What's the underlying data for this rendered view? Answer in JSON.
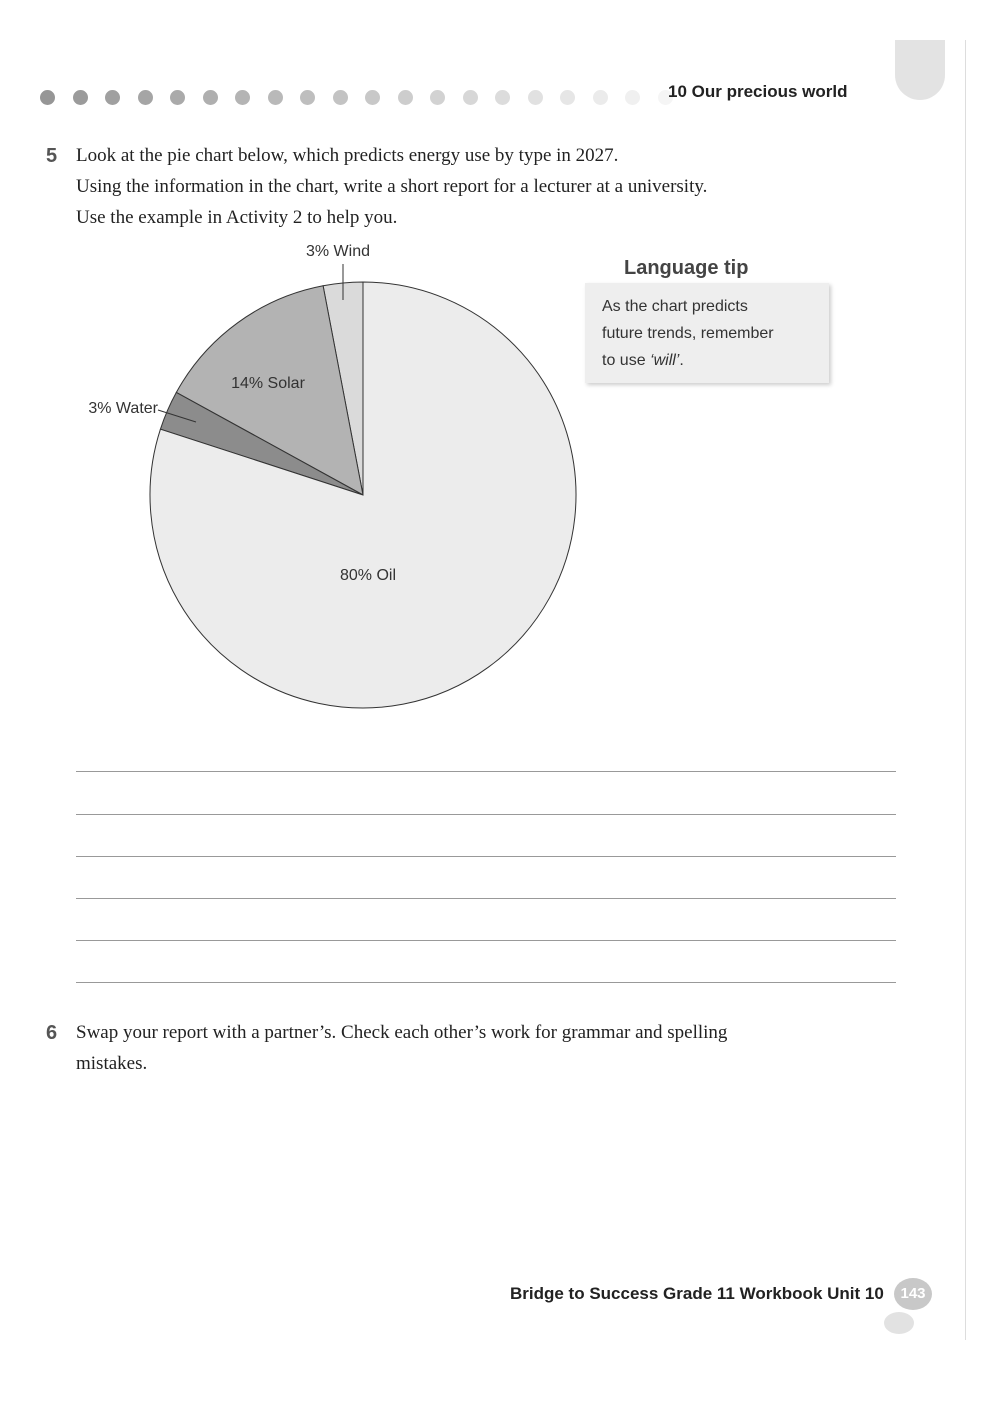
{
  "header": {
    "unit": "10 Our precious world"
  },
  "activity5": {
    "number": "5",
    "lines": [
      "Look at the pie chart below, which predicts energy use by type in 2027.",
      "Using the information in the chart, write a short report for a lecturer at a university.",
      "Use the example in Activity 2 to help you."
    ]
  },
  "chart_data": {
    "type": "pie",
    "values": [
      3,
      14,
      3,
      80
    ],
    "value_labels": [
      "3% Wind",
      "14% Solar",
      "3% Water",
      "80% Oil"
    ],
    "colors": [
      "#dadada",
      "#b3b3b3",
      "#8c8c8c",
      "#ececec"
    ]
  },
  "language_tip": {
    "title": "Language tip",
    "lines": [
      "As the chart predicts",
      "future trends, remember"
    ],
    "last_line": "to use ",
    "emphasis": "‘will’",
    "end": "."
  },
  "activity6": {
    "number": "6",
    "lines": [
      "Swap your report with a partner’s. Check each other’s work for grammar and spelling",
      "mistakes."
    ]
  },
  "footer": {
    "title": "Bridge to Success Grade 11 Workbook Unit 10",
    "page": "143"
  }
}
